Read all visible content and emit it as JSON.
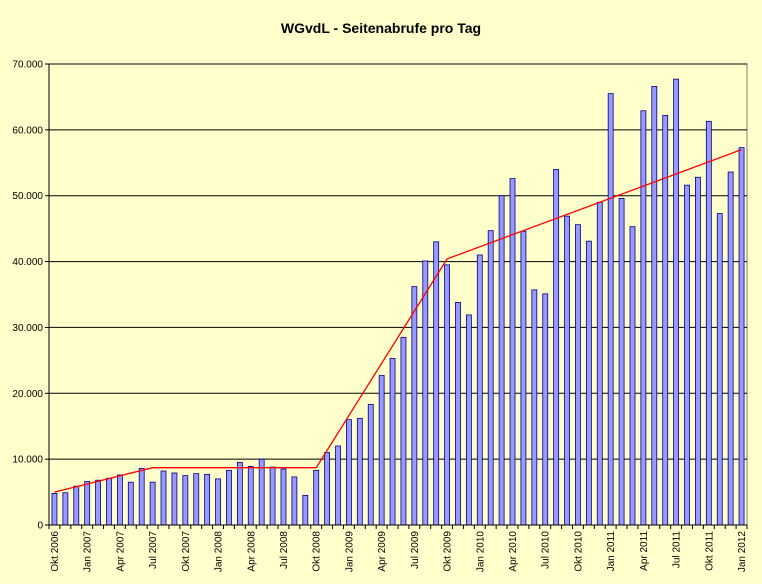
{
  "chart_data": {
    "type": "bar",
    "title": "WGvdL - Seitenabrufe pro Tag",
    "xlabel": "",
    "ylabel": "",
    "ylim": [
      0,
      70000
    ],
    "y_ticks": [
      "0",
      "10.000",
      "20.000",
      "30.000",
      "40.000",
      "50.000",
      "60.000",
      "70.000"
    ],
    "grid": true,
    "legend": "none",
    "colors": {
      "background": "#FFFFCC",
      "plot_background": "#FFFFCC",
      "bar_fill": "#9999FF",
      "bar_stroke": "#000080",
      "trend_line": "#FF0000",
      "gridline": "#000000"
    },
    "categories": [
      "Okt 2006",
      "Nov 2006",
      "Dez 2006",
      "Jan 2007",
      "Feb 2007",
      "Mrz 2007",
      "Apr 2007",
      "Mai 2007",
      "Jun 2007",
      "Jul 2007",
      "Aug 2007",
      "Sep 2007",
      "Okt 2007",
      "Nov 2007",
      "Dez 2007",
      "Jan 2008",
      "Feb 2008",
      "Mrz 2008",
      "Apr 2008",
      "Mai 2008",
      "Jun 2008",
      "Jul 2008",
      "Aug 2008",
      "Sep 2008",
      "Okt 2008",
      "Nov 2008",
      "Dez 2008",
      "Jan 2009",
      "Feb 2009",
      "Mrz 2009",
      "Apr 2009",
      "Mai 2009",
      "Jun 2009",
      "Jul 2009",
      "Aug 2009",
      "Sep 2009",
      "Okt 2009",
      "Nov 2009",
      "Dez 2009",
      "Jan 2010",
      "Feb 2010",
      "Mrz 2010",
      "Apr 2010",
      "Mai 2010",
      "Jun 2010",
      "Jul 2010",
      "Aug 2010",
      "Sep 2010",
      "Okt 2010",
      "Nov 2010",
      "Dez 2010",
      "Jan 2011",
      "Feb 2011",
      "Mrz 2011",
      "Apr 2011",
      "Mai 2011",
      "Jun 2011",
      "Jul 2011",
      "Aug 2011",
      "Sep 2011",
      "Okt 2011",
      "Nov 2011",
      "Dez 2011",
      "Jan 2012"
    ],
    "tick_labels": [
      "Okt 2006",
      "",
      "",
      "Jan 2007",
      "",
      "",
      "Apr 2007",
      "",
      "",
      "Jul 2007",
      "",
      "",
      "Okt 2007",
      "",
      "",
      "Jan 2008",
      "",
      "",
      "Apr 2008",
      "",
      "",
      "Jul 2008",
      "",
      "",
      "Okt 2008",
      "",
      "",
      "Jan 2009",
      "",
      "",
      "Apr 2009",
      "",
      "",
      "Jul 2009",
      "",
      "",
      "Okt 2009",
      "",
      "",
      "Jan 2010",
      "",
      "",
      "Apr 2010",
      "",
      "",
      "Jul 2010",
      "",
      "",
      "Okt 2010",
      "",
      "",
      "Jan 2011",
      "",
      "",
      "Apr 2011",
      "",
      "",
      "Jul 2011",
      "",
      "",
      "Okt 2011",
      "",
      "",
      "Jan 2012"
    ],
    "series": [
      {
        "type": "bar",
        "values": [
          4800,
          4900,
          5900,
          6600,
          6800,
          7100,
          7600,
          6500,
          8600,
          6500,
          8200,
          7900,
          7500,
          7800,
          7700,
          7000,
          8300,
          9500,
          8900,
          10000,
          8800,
          8500,
          7300,
          4500,
          8300,
          11000,
          12000,
          16000,
          16200,
          18300,
          22700,
          25300,
          28500,
          36200,
          40100,
          43000,
          39500,
          33800,
          31900,
          41000,
          44700,
          50000,
          52600,
          44600,
          35700,
          35100,
          54000,
          46900,
          45600,
          43100,
          49000,
          65500,
          49600,
          45300,
          62900,
          66600,
          62200,
          67700,
          51600,
          52800,
          61300,
          47300,
          53600,
          57300
        ]
      },
      {
        "type": "line",
        "points": [
          {
            "x": "Okt 2006",
            "y": 5000
          },
          {
            "x": "Jul 2007",
            "y": 8700
          },
          {
            "x": "Okt 2008",
            "y": 8700
          },
          {
            "x": "Okt 2009",
            "y": 40400
          },
          {
            "x": "Jan 2012",
            "y": 57000
          }
        ]
      }
    ]
  }
}
